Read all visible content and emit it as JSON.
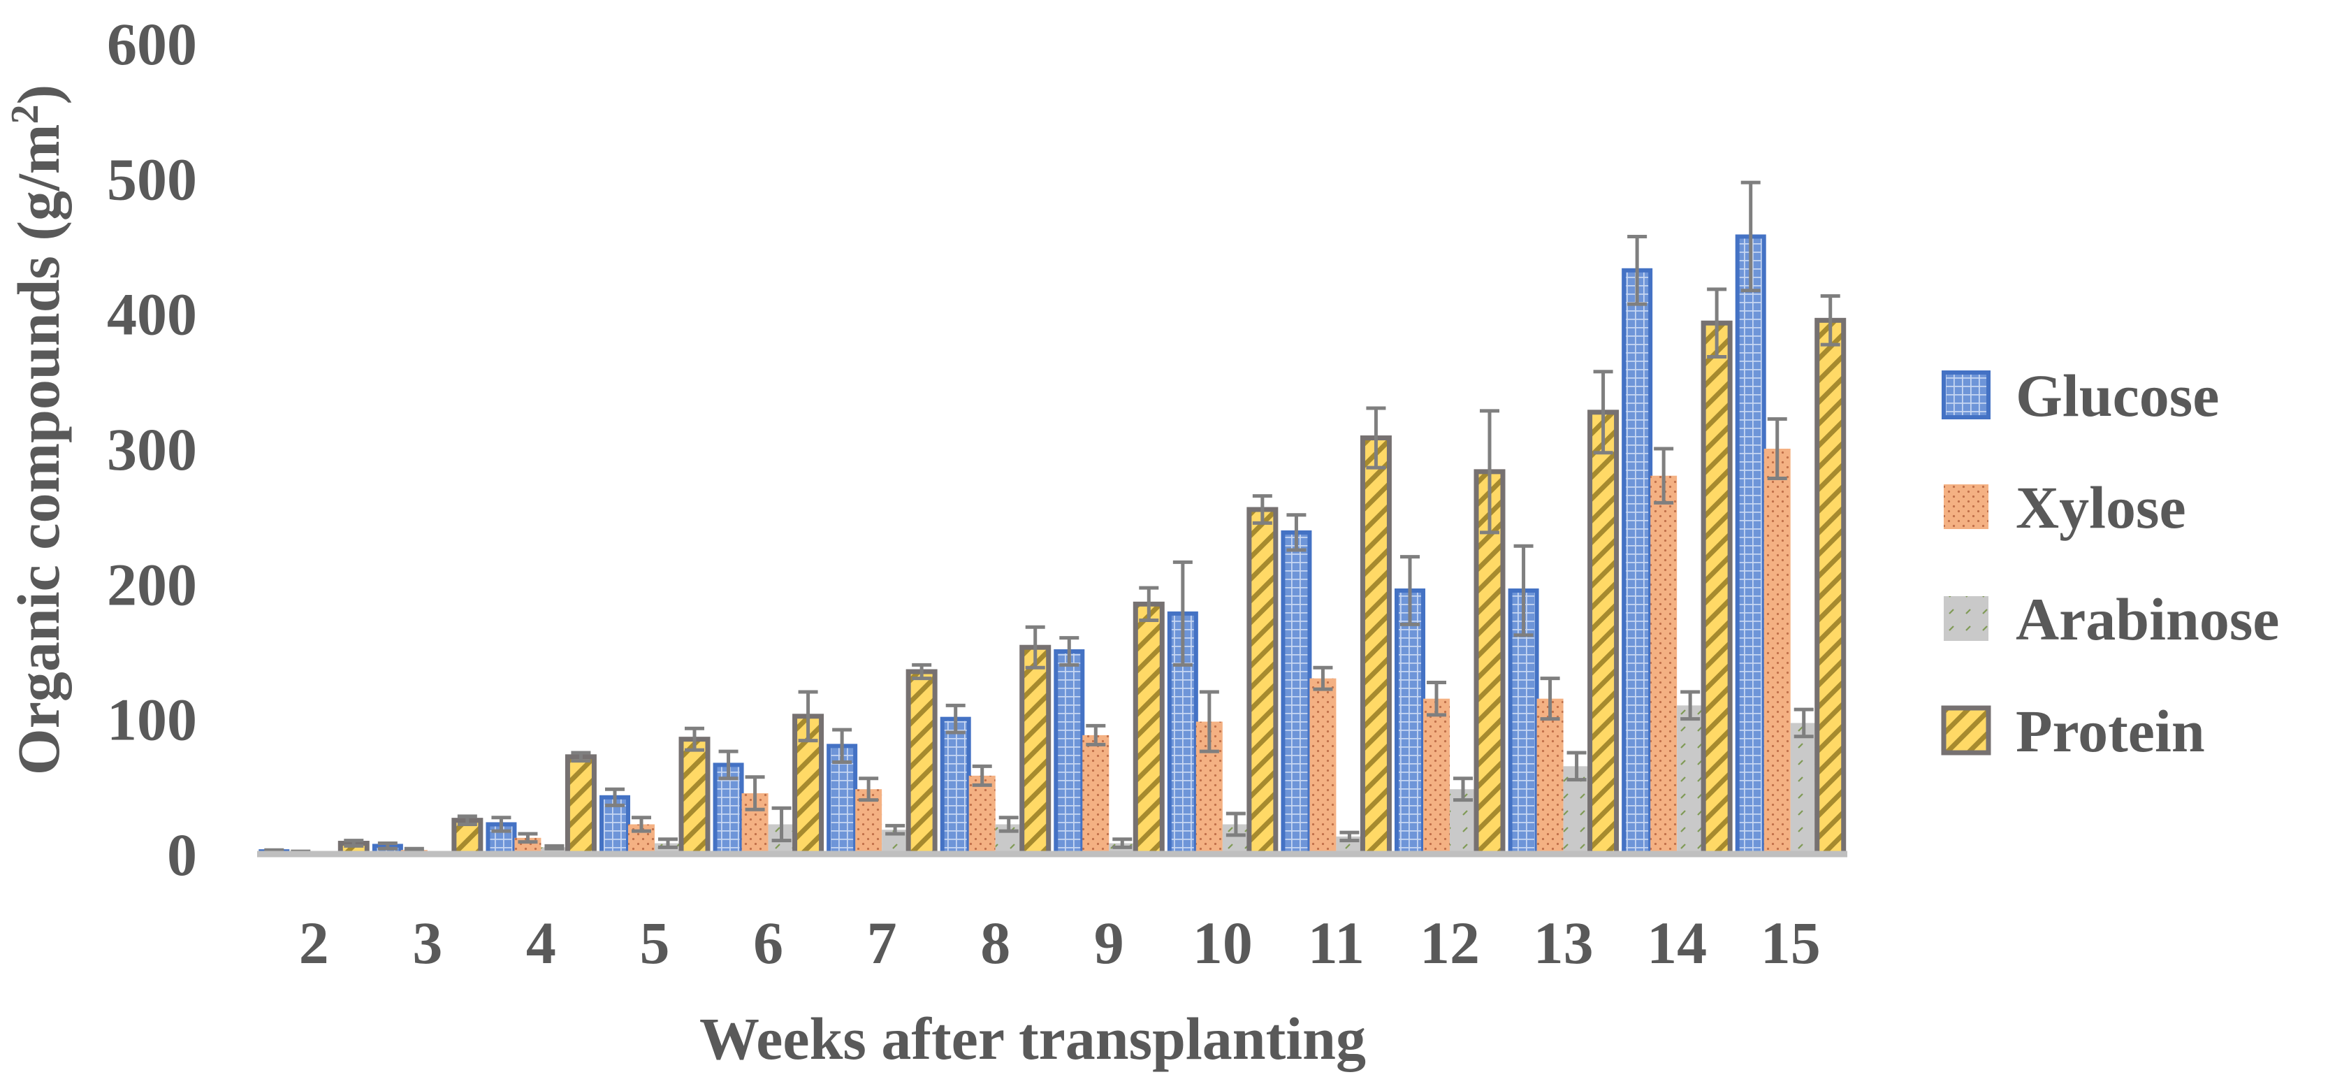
{
  "chart_data": {
    "type": "bar",
    "title": "",
    "xlabel": "Weeks after transplanting",
    "ylabel": "Organic compounds (g/m²)",
    "ylabel_main": "Organic compounds (g/m",
    "ylabel_sup": "2",
    "ylabel_close": ")",
    "ylim": [
      0,
      600
    ],
    "yticks": [
      0,
      100,
      200,
      300,
      400,
      500,
      600
    ],
    "ytick_labels": [
      "0",
      "100",
      "200",
      "300",
      "400",
      "500",
      "600"
    ],
    "grid": false,
    "legend_position": "right",
    "categories": [
      "2",
      "3",
      "4",
      "5",
      "6",
      "7",
      "8",
      "9",
      "10",
      "11",
      "12",
      "13",
      "14",
      "15"
    ],
    "series": [
      {
        "name": "Glucose",
        "color": "#4472C4",
        "pattern": "grid",
        "values": [
          2,
          6,
          22,
          42,
          66,
          80,
          100,
          150,
          178,
          238,
          195,
          195,
          432,
          457
        ],
        "errors": [
          1,
          2,
          5,
          6,
          10,
          12,
          10,
          10,
          38,
          13,
          25,
          33,
          25,
          40
        ]
      },
      {
        "name": "Xylose",
        "color": "#F4B183",
        "pattern": "dots",
        "values": [
          1,
          3,
          12,
          22,
          45,
          48,
          58,
          88,
          98,
          130,
          115,
          115,
          280,
          300
        ],
        "errors": [
          1,
          1,
          3,
          5,
          12,
          8,
          7,
          7,
          22,
          8,
          12,
          15,
          20,
          22
        ]
      },
      {
        "name": "Arabinose",
        "color": "#C9C9C9",
        "pattern": "dash",
        "values": [
          0,
          1,
          5,
          8,
          22,
          18,
          22,
          8,
          22,
          13,
          48,
          65,
          110,
          97
        ],
        "errors": [
          0,
          0,
          1,
          3,
          12,
          3,
          5,
          3,
          8,
          3,
          8,
          10,
          10,
          10
        ]
      },
      {
        "name": "Protein",
        "color": "#FFD966",
        "pattern": "diagonal",
        "values": [
          8,
          25,
          72,
          85,
          102,
          135,
          153,
          185,
          255,
          308,
          283,
          327,
          393,
          395
        ],
        "errors": [
          2,
          3,
          3,
          8,
          18,
          5,
          15,
          12,
          10,
          22,
          45,
          30,
          25,
          18
        ]
      }
    ]
  }
}
